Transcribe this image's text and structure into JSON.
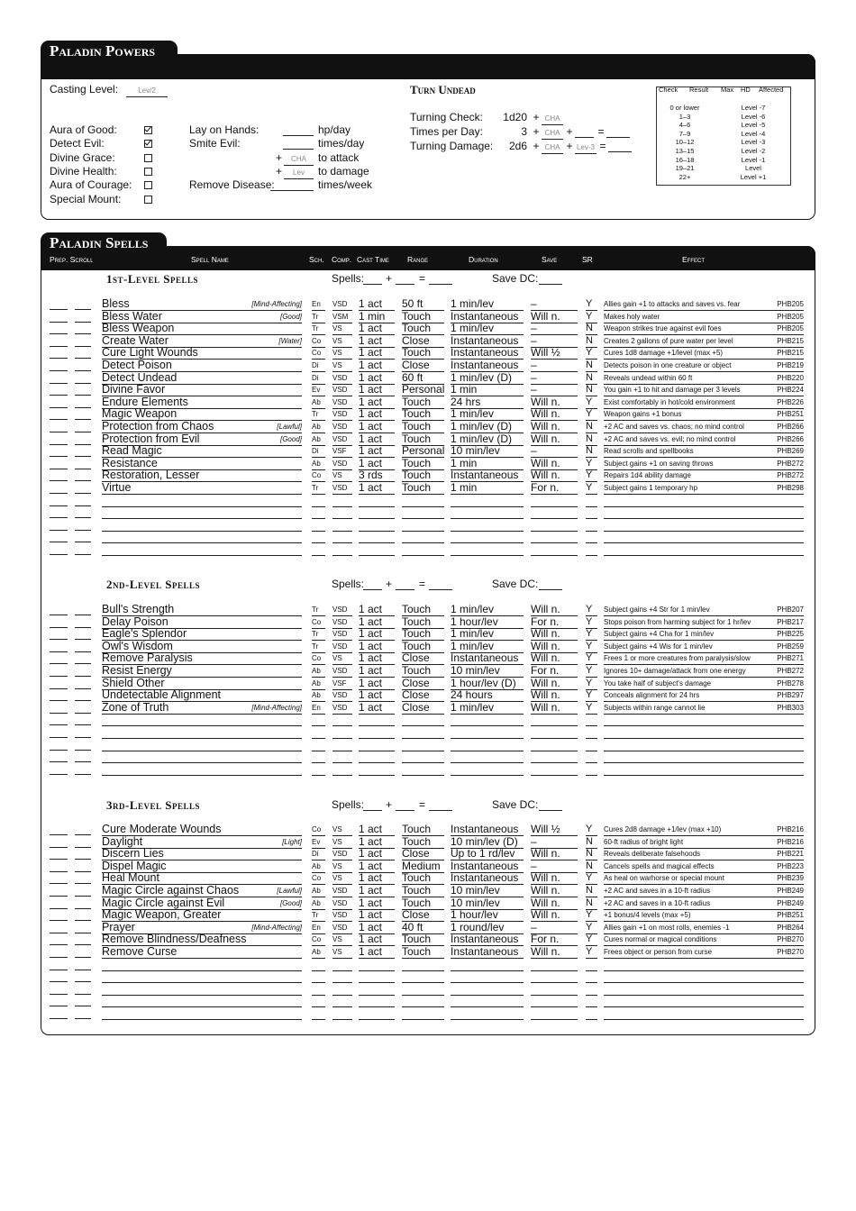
{
  "powers": {
    "title": "Paladin Powers",
    "casting_level": {
      "label": "Casting Level:",
      "value": "Lev/2"
    },
    "abilities": [
      {
        "label": "Aura of Good:",
        "checked": true
      },
      {
        "label": "Detect Evil:",
        "checked": true
      },
      {
        "label": "Divine Grace:",
        "checked": false
      },
      {
        "label": "Divine Health:",
        "checked": false
      },
      {
        "label": "Aura of Courage:",
        "checked": false
      },
      {
        "label": "Special Mount:",
        "checked": false
      }
    ],
    "features": [
      {
        "label": "Lay on Hands:",
        "unit": "hp/day"
      },
      {
        "label": "Smite Evil:",
        "unit": "times/day"
      },
      {
        "prefix": "+",
        "value": "CHA",
        "unit": "to attack"
      },
      {
        "prefix": "+",
        "value": "Lev",
        "unit": "to damage"
      },
      {
        "label": "Remove Disease:",
        "unit": "times/week"
      }
    ],
    "turn_undead": {
      "title": "Turn Undead",
      "rows": [
        {
          "label": "Turning Check:",
          "dice": "1d20",
          "parts": [
            {
              "op": "+"
            },
            {
              "field": "CHA"
            }
          ]
        },
        {
          "label": "Times per Day:",
          "dice": "3",
          "parts": [
            {
              "op": "+"
            },
            {
              "field": "CHA"
            },
            {
              "op": "+"
            },
            {
              "blank": true
            },
            {
              "op": "="
            },
            {
              "blank": true
            }
          ]
        },
        {
          "label": "Turning Damage:",
          "dice": "2d6",
          "parts": [
            {
              "op": "+"
            },
            {
              "field": "CHA"
            },
            {
              "op": "+"
            },
            {
              "field": "Lev-3"
            },
            {
              "op": "="
            },
            {
              "blank": true
            }
          ]
        }
      ]
    },
    "turn_table": {
      "headers": [
        "Check",
        "Result",
        "Max",
        "HD",
        "Affected"
      ],
      "rows": [
        [
          "0 or lower",
          "Level -7"
        ],
        [
          "1–3",
          "Level -6"
        ],
        [
          "4–6",
          "Level -5"
        ],
        [
          "7–9",
          "Level -4"
        ],
        [
          "10–12",
          "Level -3"
        ],
        [
          "13–15",
          "Level -2"
        ],
        [
          "16–18",
          "Level -1"
        ],
        [
          "19–21",
          "Level"
        ],
        [
          "22+",
          "Level +1"
        ]
      ]
    }
  },
  "spells": {
    "title": "Paladin Spells",
    "columns": [
      "Prep. Scroll",
      "Spell Name",
      "Sch.",
      "Comp.",
      "Cast Time",
      "Range",
      "Duration",
      "Save",
      "SR",
      "Effect"
    ],
    "levels": [
      {
        "title": "1st-Level Spells",
        "spells_label": "Spells:",
        "plus": "+",
        "equals": "=",
        "save_dc": "Save DC:",
        "spells": [
          {
            "name": "Bless",
            "descriptor": "[Mind-Affecting]",
            "school": "En",
            "components": "VSD",
            "cast_time": "1 act",
            "range": "50 ft",
            "duration": "1 min/lev",
            "save": "–",
            "sr": "Y",
            "effect": "Allies gain +1 to attacks and saves vs. fear",
            "ref": "PHB205"
          },
          {
            "name": "Bless Water",
            "descriptor": "[Good]",
            "school": "Tr",
            "components": "VSM",
            "cast_time": "1 min",
            "range": "Touch",
            "duration": "Instantaneous",
            "save": "Will n.",
            "sr": "Y",
            "effect": "Makes holy water",
            "ref": "PHB205"
          },
          {
            "name": "Bless Weapon",
            "school": "Tr",
            "components": "VS",
            "cast_time": "1 act",
            "range": "Touch",
            "duration": "1 min/lev",
            "save": "–",
            "sr": "N",
            "effect": "Weapon strikes true against evil foes",
            "ref": "PHB205"
          },
          {
            "name": "Create Water",
            "descriptor": "[Water]",
            "school": "Co",
            "components": "VS",
            "cast_time": "1 act",
            "range": "Close",
            "duration": "Instantaneous",
            "save": "–",
            "sr": "N",
            "effect": "Creates 2 gallons of pure water per level",
            "ref": "PHB215"
          },
          {
            "name": "Cure Light Wounds",
            "school": "Co",
            "components": "VS",
            "cast_time": "1 act",
            "range": "Touch",
            "duration": "Instantaneous",
            "save": "Will ½",
            "sr": "Y",
            "effect": "Cures 1d8 damage +1/level (max +5)",
            "ref": "PHB215"
          },
          {
            "name": "Detect Poison",
            "school": "Di",
            "components": "VS",
            "cast_time": "1 act",
            "range": "Close",
            "duration": "Instantaneous",
            "save": "–",
            "sr": "N",
            "effect": "Detects poison in one creature or object",
            "ref": "PHB219"
          },
          {
            "name": "Detect Undead",
            "school": "Di",
            "components": "VSD",
            "cast_time": "1 act",
            "range": "60 ft",
            "duration": "1 min/lev (D)",
            "save": "–",
            "sr": "N",
            "effect": "Reveals undead within 60 ft",
            "ref": "PHB220"
          },
          {
            "name": "Divine Favor",
            "school": "Ev",
            "components": "VSD",
            "cast_time": "1 act",
            "range": "Personal",
            "duration": "1 min",
            "save": "–",
            "sr": "N",
            "effect": "You gain +1 to hit and damage per 3 levels",
            "ref": "PHB224"
          },
          {
            "name": "Endure Elements",
            "school": "Ab",
            "components": "VSD",
            "cast_time": "1 act",
            "range": "Touch",
            "duration": "24 hrs",
            "save": "Will n.",
            "sr": "Y",
            "effect": "Exist comfortably in hot/cold environment",
            "ref": "PHB226"
          },
          {
            "name": "Magic Weapon",
            "school": "Tr",
            "components": "VSD",
            "cast_time": "1 act",
            "range": "Touch",
            "duration": "1 min/lev",
            "save": "Will n.",
            "sr": "Y",
            "effect": "Weapon gains +1 bonus",
            "ref": "PHB251"
          },
          {
            "name": "Protection from Chaos",
            "descriptor": "[Lawful]",
            "school": "Ab",
            "components": "VSD",
            "cast_time": "1 act",
            "range": "Touch",
            "duration": "1 min/lev (D)",
            "save": "Will n.",
            "sr": "N",
            "effect": "+2 AC and saves vs. chaos; no mind control",
            "ref": "PHB266"
          },
          {
            "name": "Protection from Evil",
            "descriptor": "[Good]",
            "school": "Ab",
            "components": "VSD",
            "cast_time": "1 act",
            "range": "Touch",
            "duration": "1 min/lev (D)",
            "save": "Will n.",
            "sr": "N",
            "effect": "+2 AC and saves vs. evil; no mind control",
            "ref": "PHB266"
          },
          {
            "name": "Read Magic",
            "school": "Di",
            "components": "VSF",
            "cast_time": "1 act",
            "range": "Personal",
            "duration": "10 min/lev",
            "save": "–",
            "sr": "N",
            "effect": "Read scrolls and spellbooks",
            "ref": "PHB269"
          },
          {
            "name": "Resistance",
            "school": "Ab",
            "components": "VSD",
            "cast_time": "1 act",
            "range": "Touch",
            "duration": "1 min",
            "save": "Will n.",
            "sr": "Y",
            "effect": "Subject gains +1 on saving throws",
            "ref": "PHB272"
          },
          {
            "name": "Restoration, Lesser",
            "school": "Co",
            "components": "VS",
            "cast_time": "3 rds",
            "range": "Touch",
            "duration": "Instantaneous",
            "save": "Will n.",
            "sr": "Y",
            "effect": "Repairs 1d4 ability damage",
            "ref": "PHB272"
          },
          {
            "name": "Virtue",
            "school": "Tr",
            "components": "VSD",
            "cast_time": "1 act",
            "range": "Touch",
            "duration": "1 min",
            "save": "For n.",
            "sr": "Y",
            "effect": "Subject gains 1 temporary hp",
            "ref": "PHB298"
          }
        ]
      },
      {
        "title": "2nd-Level Spells",
        "spells_label": "Spells:",
        "plus": "+",
        "equals": "=",
        "save_dc": "Save DC:",
        "spells": [
          {
            "name": "Bull's Strength",
            "school": "Tr",
            "components": "VSD",
            "cast_time": "1 act",
            "range": "Touch",
            "duration": "1 min/lev",
            "save": "Will n.",
            "sr": "Y",
            "effect": "Subject gains +4 Str for 1 min/lev",
            "ref": "PHB207"
          },
          {
            "name": "Delay Poison",
            "school": "Co",
            "components": "VSD",
            "cast_time": "1 act",
            "range": "Touch",
            "duration": "1 hour/lev",
            "save": "For n.",
            "sr": "Y",
            "effect": "Stops poison from harming subject for 1 hr/lev",
            "ref": "PHB217"
          },
          {
            "name": "Eagle's Splendor",
            "school": "Tr",
            "components": "VSD",
            "cast_time": "1 act",
            "range": "Touch",
            "duration": "1 min/lev",
            "save": "Will n.",
            "sr": "Y",
            "effect": "Subject gains +4 Cha for 1 min/lev",
            "ref": "PHB225"
          },
          {
            "name": "Owl's Wisdom",
            "school": "Tr",
            "components": "VSD",
            "cast_time": "1 act",
            "range": "Touch",
            "duration": "1 min/lev",
            "save": "Will n.",
            "sr": "Y",
            "effect": "Subject gains +4 Wis for 1 min/lev",
            "ref": "PHB259"
          },
          {
            "name": "Remove Paralysis",
            "school": "Co",
            "components": "VS",
            "cast_time": "1 act",
            "range": "Close",
            "duration": "Instantaneous",
            "save": "Will n.",
            "sr": "Y",
            "effect": "Frees 1 or more creatures from paralysis/slow",
            "ref": "PHB271"
          },
          {
            "name": "Resist Energy",
            "school": "Ab",
            "components": "VSD",
            "cast_time": "1 act",
            "range": "Touch",
            "duration": "10 min/lev",
            "save": "For n.",
            "sr": "Y",
            "effect": "Ignores 10+ damage/attack from one energy",
            "ref": "PHB272"
          },
          {
            "name": "Shield Other",
            "school": "Ab",
            "components": "VSF",
            "cast_time": "1 act",
            "range": "Close",
            "duration": "1 hour/lev (D)",
            "save": "Will n.",
            "sr": "Y",
            "effect": "You take half of subject's damage",
            "ref": "PHB278"
          },
          {
            "name": "Undetectable Alignment",
            "school": "Ab",
            "components": "VSD",
            "cast_time": "1 act",
            "range": "Close",
            "duration": "24 hours",
            "save": "Will n.",
            "sr": "Y",
            "effect": "Conceals alignment for 24 hrs",
            "ref": "PHB297"
          },
          {
            "name": "Zone of Truth",
            "descriptor": "[Mind-Affecting]",
            "school": "En",
            "components": "VSD",
            "cast_time": "1 act",
            "range": "Close",
            "duration": "1 min/lev",
            "save": "Will n.",
            "sr": "Y",
            "effect": "Subjects within range cannot lie",
            "ref": "PHB303"
          }
        ]
      },
      {
        "title": "3rd-Level Spells",
        "spells_label": "Spells:",
        "plus": "+",
        "equals": "=",
        "save_dc": "Save DC:",
        "spells": [
          {
            "name": "Cure Moderate Wounds",
            "school": "Co",
            "components": "VS",
            "cast_time": "1 act",
            "range": "Touch",
            "duration": "Instantaneous",
            "save": "Will ½",
            "sr": "Y",
            "effect": "Cures 2d8 damage +1/lev (max +10)",
            "ref": "PHB216"
          },
          {
            "name": "Daylight",
            "descriptor": "[Light]",
            "school": "Ev",
            "components": "VS",
            "cast_time": "1 act",
            "range": "Touch",
            "duration": "10 min/lev (D)",
            "save": "–",
            "sr": "N",
            "effect": "60-ft radius of bright light",
            "ref": "PHB216"
          },
          {
            "name": "Discern Lies",
            "school": "Di",
            "components": "VSD",
            "cast_time": "1 act",
            "range": "Close",
            "duration": "Up to 1 rd/lev",
            "save": "Will n.",
            "sr": "N",
            "effect": "Reveals deliberate falsehoods",
            "ref": "PHB221"
          },
          {
            "name": "Dispel Magic",
            "school": "Ab",
            "components": "VS",
            "cast_time": "1 act",
            "range": "Medium",
            "duration": "Instantaneous",
            "save": "–",
            "sr": "N",
            "effect": "Cancels spells and magical effects",
            "ref": "PHB223"
          },
          {
            "name": "Heal Mount",
            "school": "Co",
            "components": "VS",
            "cast_time": "1 act",
            "range": "Touch",
            "duration": "Instantaneous",
            "save": "Will n.",
            "sr": "Y",
            "effect": "As heal on warhorse or special mount",
            "ref": "PHB239"
          },
          {
            "name": "Magic Circle against Chaos",
            "descriptor": "[Lawful]",
            "school": "Ab",
            "components": "VSD",
            "cast_time": "1 act",
            "range": "Touch",
            "duration": "10 min/lev",
            "save": "Will n.",
            "sr": "N",
            "effect": "+2 AC and saves in a 10-ft radius",
            "ref": "PHB249"
          },
          {
            "name": "Magic Circle against Evil",
            "descriptor": "[Good]",
            "school": "Ab",
            "components": "VSD",
            "cast_time": "1 act",
            "range": "Touch",
            "duration": "10 min/lev",
            "save": "Will n.",
            "sr": "N",
            "effect": "+2 AC and saves in a 10-ft radius",
            "ref": "PHB249"
          },
          {
            "name": "Magic Weapon, Greater",
            "school": "Tr",
            "components": "VSD",
            "cast_time": "1 act",
            "range": "Close",
            "duration": "1 hour/lev",
            "save": "Will n.",
            "sr": "Y",
            "effect": "+1 bonus/4 levels (max +5)",
            "ref": "PHB251"
          },
          {
            "name": "Prayer",
            "descriptor": "[Mind-Affecting]",
            "school": "En",
            "components": "VSD",
            "cast_time": "1 act",
            "range": "40 ft",
            "duration": "1 round/lev",
            "save": "–",
            "sr": "Y",
            "effect": "Allies gain +1 on most rolls, enemies -1",
            "ref": "PHB264"
          },
          {
            "name": "Remove Blindness/Deafness",
            "school": "Co",
            "components": "VS",
            "cast_time": "1 act",
            "range": "Touch",
            "duration": "Instantaneous",
            "save": "For n.",
            "sr": "Y",
            "effect": "Cures normal or magical conditions",
            "ref": "PHB270"
          },
          {
            "name": "Remove Curse",
            "school": "Ab",
            "components": "VS",
            "cast_time": "1 act",
            "range": "Touch",
            "duration": "Instantaneous",
            "save": "Will n.",
            "sr": "Y",
            "effect": "Frees object or person from curse",
            "ref": "PHB270"
          }
        ]
      }
    ]
  }
}
